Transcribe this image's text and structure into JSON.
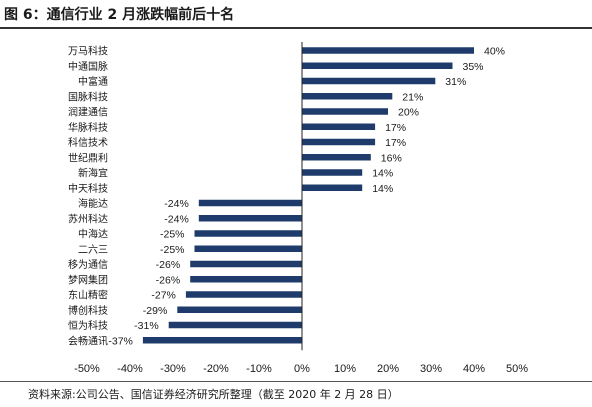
{
  "figure": {
    "title": "图 6：通信行业 2 月涨跌幅前后十名",
    "source": "资料来源:公司公告、国信证券经济研究所整理（截至 2020 年 2 月 28 日）"
  },
  "chart_data": {
    "type": "bar",
    "orientation": "horizontal",
    "title": "通信行业 2 月涨跌幅前后十名",
    "categories": [
      "万马科技",
      "中通国脉",
      "中富通",
      "国脉科技",
      "润建通信",
      "华脉科技",
      "科信技术",
      "世纪鼎利",
      "新海宜",
      "中天科技",
      "海能达",
      "苏州科达",
      "中海达",
      "二六三",
      "移为通信",
      "梦网集团",
      "东山精密",
      "博创科技",
      "恒为科技",
      "会畅通讯"
    ],
    "values": [
      40,
      35,
      31,
      21,
      20,
      17,
      17,
      16,
      14,
      14,
      -24,
      -24,
      -25,
      -25,
      -26,
      -26,
      -27,
      -29,
      -31,
      -37
    ],
    "value_labels": [
      "40%",
      "35%",
      "31%",
      "21%",
      "20%",
      "17%",
      "17%",
      "16%",
      "14%",
      "14%",
      "-24%",
      "-24%",
      "-25%",
      "-25%",
      "-26%",
      "-26%",
      "-27%",
      "-29%",
      "-31%",
      "-37%"
    ],
    "xlim": [
      -50,
      50
    ],
    "xticks": [
      -50,
      -40,
      -30,
      -20,
      -10,
      0,
      10,
      20,
      30,
      40,
      50
    ],
    "xtick_labels": [
      "-50%",
      "-40%",
      "-30%",
      "-20%",
      "-10%",
      "0%",
      "10%",
      "20%",
      "30%",
      "40%",
      "50%"
    ],
    "bar_color": "#1f3b6b",
    "grid": false
  }
}
